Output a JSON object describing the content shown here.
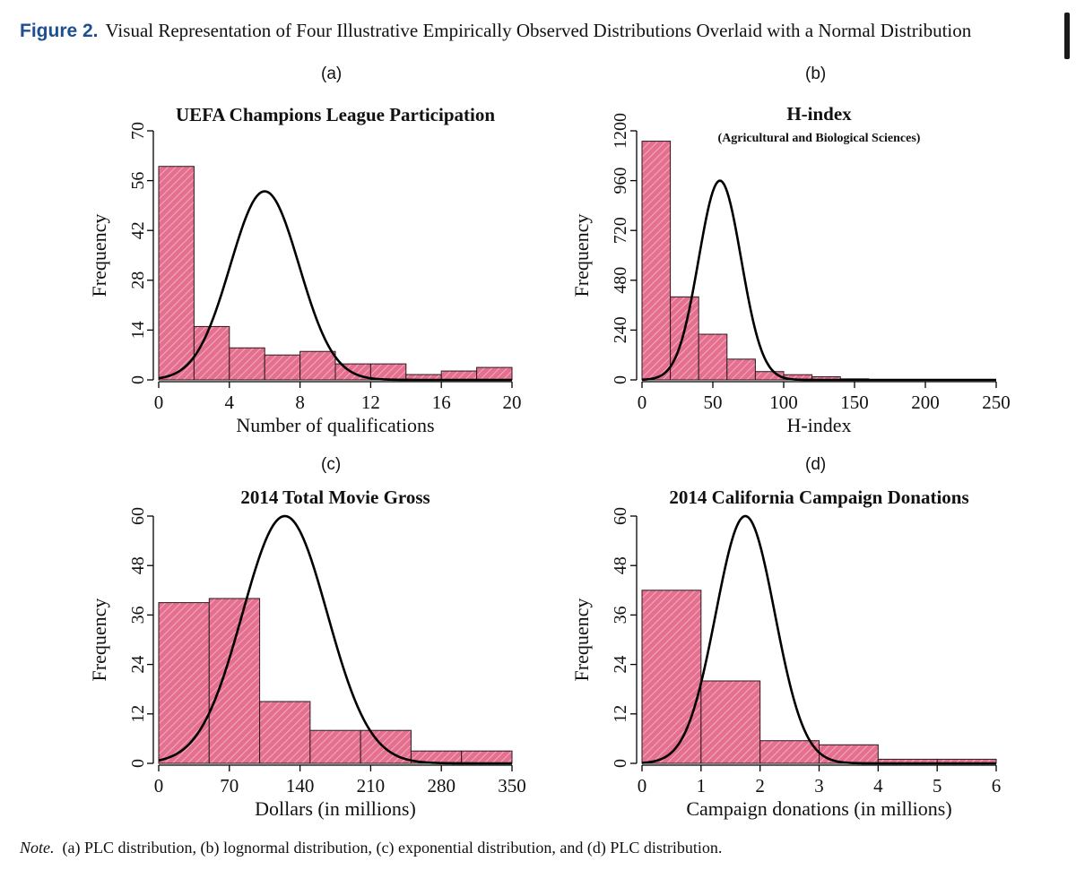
{
  "figure": {
    "label": "Figure 2.",
    "title": "Visual Representation of Four Illustrative Empirically Observed Distributions Overlaid with a Normal Distribution",
    "note_label": "Note.",
    "note_text": "(a) PLC distribution, (b) lognormal distribution, (c) exponential distribution, and (d) PLC distribution."
  },
  "colors": {
    "bar_fill": "#e46f8e",
    "bar_hatch": "#ffffff",
    "bar_edge": "#2b1a1f",
    "curve": "#000000",
    "title_label": "#1e4f91"
  },
  "chart_data": [
    {
      "panel": "(a)",
      "type": "bar",
      "title": "UEFA Champions League Participation",
      "subtitle": "",
      "xlabel": "Number of qualifications",
      "ylabel": "Frequency",
      "xlim": [
        0,
        20
      ],
      "ylim": [
        0,
        70
      ],
      "xticks": [
        0,
        4,
        8,
        12,
        16,
        20
      ],
      "yticks": [
        0,
        14,
        28,
        42,
        56,
        70
      ],
      "bin_edges": [
        0,
        2,
        4,
        6,
        8,
        10,
        12,
        14,
        16,
        18,
        20
      ],
      "values": [
        60,
        15,
        9,
        7,
        8,
        4.5,
        4.5,
        1.5,
        2.5,
        3.5
      ],
      "normal_curve": {
        "mean": 6,
        "sd": 1.95,
        "peak": 53
      }
    },
    {
      "panel": "(b)",
      "type": "bar",
      "title": "H-index",
      "subtitle": "(Agricultural and Biological Sciences)",
      "xlabel": "H-index",
      "ylabel": "Frequency",
      "xlim": [
        0,
        250
      ],
      "ylim": [
        0,
        1200
      ],
      "xticks": [
        0,
        50,
        100,
        150,
        200,
        250
      ],
      "yticks": [
        0,
        240,
        480,
        720,
        960,
        1200
      ],
      "bin_edges": [
        0,
        20,
        40,
        60,
        80,
        100,
        120,
        140,
        160,
        180,
        200,
        220,
        240,
        250
      ],
      "values": [
        1150,
        400,
        220,
        100,
        40,
        25,
        15,
        5,
        2,
        1,
        1,
        1,
        0
      ],
      "normal_curve": {
        "mean": 55,
        "sd": 15,
        "peak": 960
      }
    },
    {
      "panel": "(c)",
      "type": "bar",
      "title": "2014 Total Movie Gross",
      "subtitle": "",
      "xlabel": "Dollars (in millions)",
      "ylabel": "Frequency",
      "xlim": [
        0,
        350
      ],
      "ylim": [
        0,
        60
      ],
      "xticks": [
        0,
        70,
        140,
        210,
        280,
        350
      ],
      "yticks": [
        0,
        12,
        24,
        36,
        48,
        60
      ],
      "bin_edges": [
        0,
        50,
        100,
        150,
        200,
        250,
        300,
        350
      ],
      "values": [
        39,
        40,
        15,
        8,
        8,
        3,
        3
      ],
      "normal_curve": {
        "mean": 125,
        "sd": 42,
        "peak": 60
      }
    },
    {
      "panel": "(d)",
      "type": "bar",
      "title": "2014 California Campaign Donations",
      "subtitle": "",
      "xlabel": "Campaign donations (in millions)",
      "ylabel": "Frequency",
      "xlim": [
        0,
        6
      ],
      "ylim": [
        0,
        60
      ],
      "xticks": [
        0,
        1,
        2,
        3,
        4,
        5,
        6
      ],
      "yticks": [
        0,
        12,
        24,
        36,
        48,
        60
      ],
      "bin_edges": [
        0,
        1,
        2,
        3,
        4,
        5,
        6
      ],
      "values": [
        42,
        20,
        5.5,
        4.5,
        1,
        1
      ],
      "normal_curve": {
        "mean": 1.75,
        "sd": 0.5,
        "peak": 60
      }
    }
  ]
}
